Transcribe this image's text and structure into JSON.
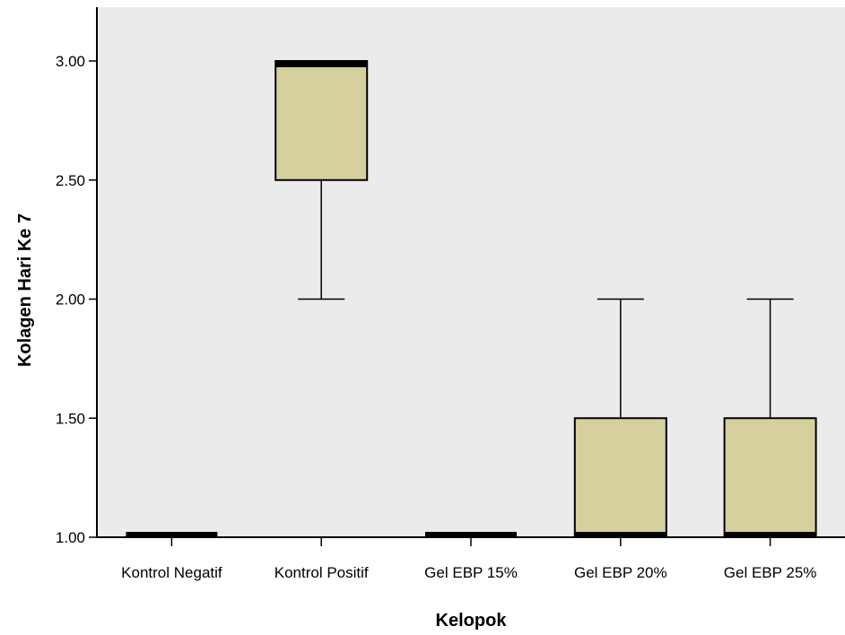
{
  "chart_data": {
    "type": "boxplot",
    "xlabel": "Kelopok",
    "ylabel": "Kolagen Hari Ke 7",
    "ylim": [
      1.0,
      3.0
    ],
    "yticks": [
      1.0,
      1.5,
      2.0,
      2.5,
      3.0
    ],
    "ytick_labels": [
      "1.00",
      "1.50",
      "2.00",
      "2.50",
      "3.00"
    ],
    "categories": [
      "Kontrol Negatif",
      "Kontrol Positif",
      "Gel EBP 15%",
      "Gel EBP 20%",
      "Gel EBP 25%"
    ],
    "boxes": [
      {
        "min": 1.0,
        "q1": 1.0,
        "median": 1.0,
        "q3": 1.0,
        "max": 1.0
      },
      {
        "min": 2.0,
        "q1": 2.5,
        "median": 3.0,
        "q3": 3.0,
        "max": 3.0
      },
      {
        "min": 1.0,
        "q1": 1.0,
        "median": 1.0,
        "q3": 1.0,
        "max": 1.0
      },
      {
        "min": 1.0,
        "q1": 1.0,
        "median": 1.0,
        "q3": 1.5,
        "max": 2.0
      },
      {
        "min": 1.0,
        "q1": 1.0,
        "median": 1.0,
        "q3": 1.5,
        "max": 2.0
      }
    ],
    "colors": {
      "plot_background": "#ebebeb",
      "box_fill": "#d5d09e",
      "line": "#000000"
    },
    "grid": false,
    "legend": "none"
  }
}
